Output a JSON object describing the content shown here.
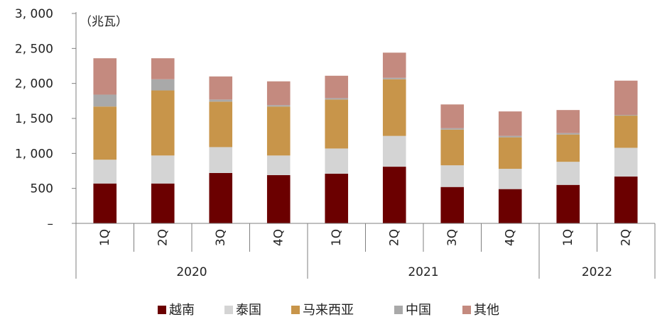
{
  "chart_data": {
    "type": "bar",
    "stacked": true,
    "unit_label": "（兆瓦）",
    "categories": [
      "1Q",
      "2Q",
      "3Q",
      "4Q",
      "1Q",
      "2Q",
      "3Q",
      "4Q",
      "1Q",
      "2Q"
    ],
    "groups": [
      {
        "label": "2020",
        "start": 0,
        "end": 4
      },
      {
        "label": "2021",
        "start": 4,
        "end": 8
      },
      {
        "label": "2022",
        "start": 8,
        "end": 10
      }
    ],
    "y_ticks": [
      {
        "value": 0,
        "label": "–"
      },
      {
        "value": 500,
        "label": "500"
      },
      {
        "value": 1000,
        "label": "1, 000"
      },
      {
        "value": 1500,
        "label": "1, 500"
      },
      {
        "value": 2000,
        "label": "2, 000"
      },
      {
        "value": 2500,
        "label": "2, 500"
      },
      {
        "value": 3000,
        "label": "3, 000"
      }
    ],
    "ylim": [
      0,
      3000
    ],
    "grid": false,
    "legend_position": "bottom",
    "series": [
      {
        "name": "越南",
        "color": "#6b0000",
        "values": [
          570,
          570,
          720,
          690,
          710,
          810,
          520,
          490,
          550,
          670
        ]
      },
      {
        "name": "泰国",
        "color": "#d4d4d4",
        "values": [
          340,
          400,
          370,
          280,
          360,
          440,
          310,
          290,
          330,
          410
        ]
      },
      {
        "name": "马来西亚",
        "color": "#c8954a",
        "values": [
          760,
          930,
          650,
          700,
          700,
          810,
          510,
          450,
          390,
          460
        ]
      },
      {
        "name": "中国",
        "color": "#a9a9a9",
        "values": [
          170,
          160,
          30,
          20,
          20,
          20,
          20,
          20,
          20,
          10
        ]
      },
      {
        "name": "其他",
        "color": "#c48a7f",
        "values": [
          520,
          300,
          330,
          340,
          320,
          360,
          340,
          350,
          330,
          490
        ]
      }
    ]
  }
}
